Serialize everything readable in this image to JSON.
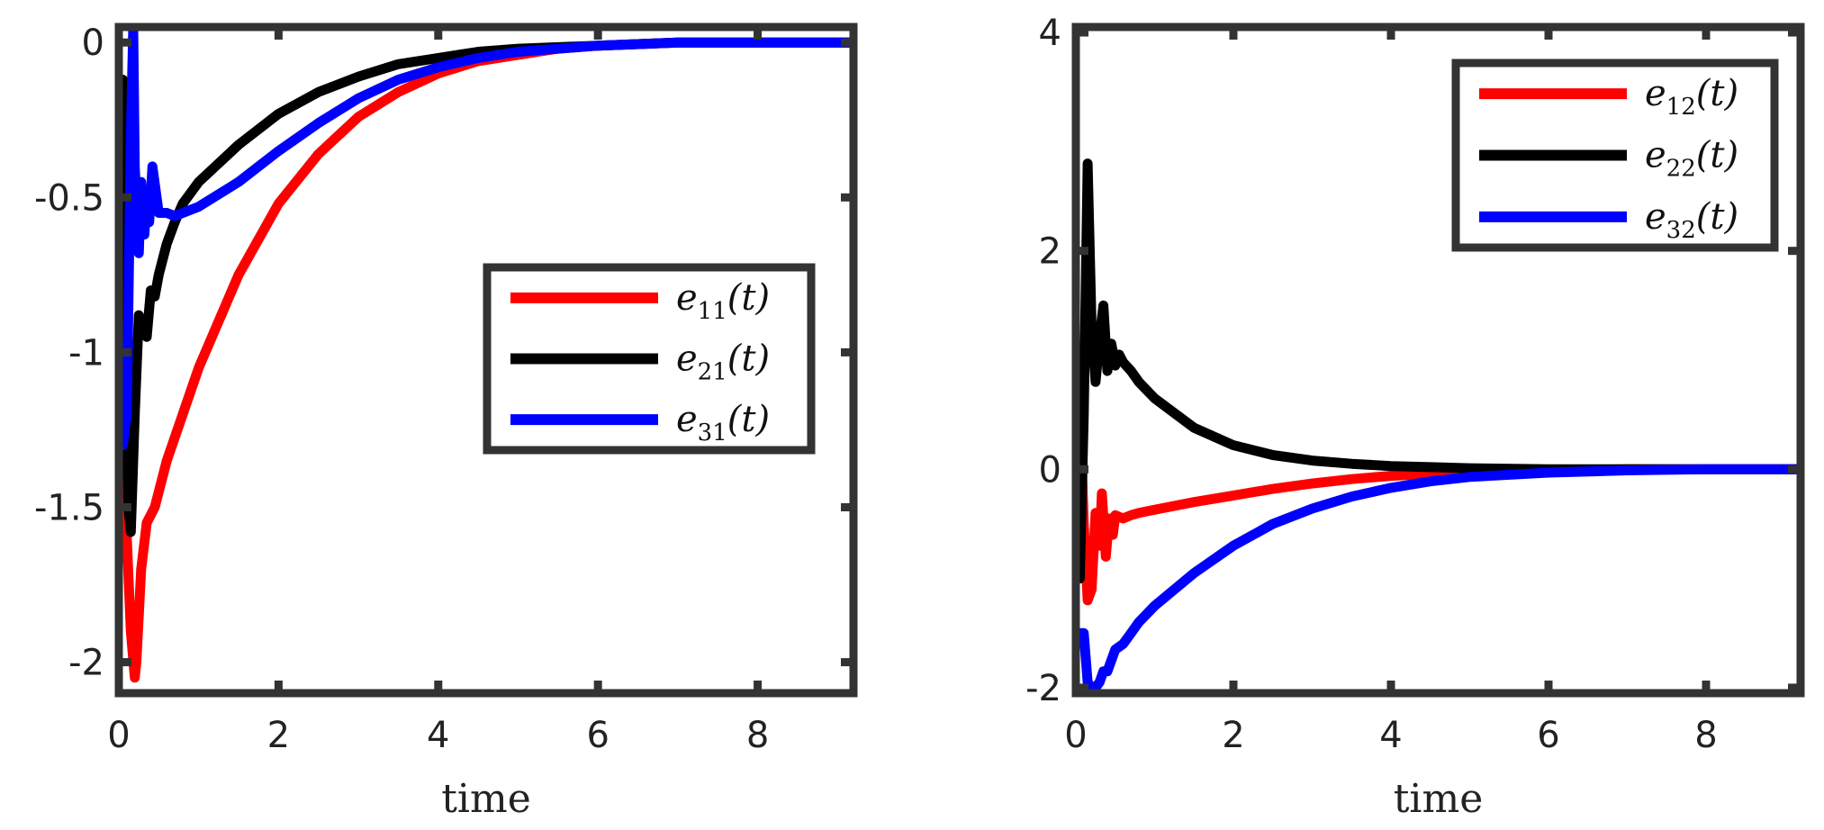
{
  "chart_data": [
    {
      "type": "line",
      "title": "",
      "xlabel": "time",
      "ylabel": "",
      "xlim": [
        0,
        9.2
      ],
      "ylim": [
        -2.1,
        0.05
      ],
      "xticks": [
        0,
        2,
        4,
        6,
        8
      ],
      "yticks": [
        -2,
        -1.5,
        -1,
        -0.5,
        0
      ],
      "ytick_labels": [
        "-2",
        "-1.5",
        "-1",
        "-0.5",
        "0"
      ],
      "grid": false,
      "legend_position": "right-middle",
      "colors": [
        "#ff0000",
        "#000000",
        "#0000ff"
      ],
      "series": [
        {
          "name": "e11(t)",
          "color": "#ff0000",
          "x": [
            0.05,
            0.1,
            0.15,
            0.2,
            0.22,
            0.28,
            0.35,
            0.45,
            0.6,
            0.8,
            1.0,
            1.5,
            2.0,
            2.5,
            3.0,
            3.5,
            4.0,
            4.5,
            5.0,
            5.5,
            6.0,
            7.0,
            8.0,
            9.2
          ],
          "y": [
            -1.0,
            -1.6,
            -1.9,
            -2.05,
            -2.0,
            -1.7,
            -1.55,
            -1.5,
            -1.35,
            -1.2,
            -1.05,
            -0.75,
            -0.52,
            -0.36,
            -0.24,
            -0.16,
            -0.1,
            -0.06,
            -0.04,
            -0.02,
            -0.01,
            0.0,
            0.0,
            0.0
          ]
        },
        {
          "name": "e21(t)",
          "color": "#000000",
          "x": [
            0.05,
            0.08,
            0.1,
            0.12,
            0.15,
            0.2,
            0.25,
            0.3,
            0.35,
            0.4,
            0.45,
            0.5,
            0.6,
            0.7,
            0.8,
            1.0,
            1.5,
            2.0,
            2.5,
            3.0,
            3.5,
            4.0,
            4.5,
            5.0,
            6.0,
            7.0,
            8.0,
            9.2
          ],
          "y": [
            -0.12,
            -0.5,
            -1.2,
            -1.5,
            -1.58,
            -1.2,
            -0.88,
            -0.93,
            -0.95,
            -0.8,
            -0.82,
            -0.75,
            -0.65,
            -0.58,
            -0.52,
            -0.45,
            -0.33,
            -0.23,
            -0.16,
            -0.11,
            -0.07,
            -0.05,
            -0.03,
            -0.02,
            -0.01,
            0.0,
            0.0,
            0.0
          ]
        },
        {
          "name": "e31(t)",
          "color": "#0000ff",
          "x": [
            0.05,
            0.1,
            0.15,
            0.18,
            0.2,
            0.25,
            0.28,
            0.32,
            0.35,
            0.38,
            0.42,
            0.5,
            0.6,
            0.7,
            0.8,
            1.0,
            1.5,
            2.0,
            2.5,
            3.0,
            3.5,
            4.0,
            4.5,
            5.0,
            6.0,
            7.0,
            8.0,
            9.2
          ],
          "y": [
            -1.3,
            -1.2,
            -0.3,
            0.05,
            -0.4,
            -0.68,
            -0.45,
            -0.62,
            -0.5,
            -0.58,
            -0.4,
            -0.55,
            -0.55,
            -0.56,
            -0.55,
            -0.53,
            -0.45,
            -0.35,
            -0.26,
            -0.18,
            -0.12,
            -0.08,
            -0.05,
            -0.03,
            -0.01,
            0.0,
            0.0,
            0.0
          ]
        }
      ]
    },
    {
      "type": "line",
      "title": "",
      "xlabel": "time",
      "ylabel": "",
      "xlim": [
        0,
        9.2
      ],
      "ylim": [
        -2.05,
        4.05
      ],
      "xticks": [
        0,
        2,
        4,
        6,
        8
      ],
      "yticks": [
        -2,
        0,
        2,
        4
      ],
      "ytick_labels": [
        "-2",
        "0",
        "2",
        "4"
      ],
      "grid": false,
      "legend_position": "top-right",
      "colors": [
        "#ff0000",
        "#000000",
        "#0000ff"
      ],
      "series": [
        {
          "name": "e12(t)",
          "color": "#ff0000",
          "x": [
            0.05,
            0.1,
            0.15,
            0.2,
            0.25,
            0.3,
            0.33,
            0.38,
            0.42,
            0.47,
            0.5,
            0.6,
            0.7,
            0.8,
            1.0,
            1.5,
            2.0,
            2.5,
            3.0,
            3.5,
            4.0,
            4.5,
            5.0,
            6.0,
            7.0,
            8.0,
            9.2
          ],
          "y": [
            0.6,
            -0.5,
            -1.2,
            -1.1,
            -0.4,
            -0.7,
            -0.22,
            -0.8,
            -0.45,
            -0.6,
            -0.42,
            -0.45,
            -0.42,
            -0.4,
            -0.37,
            -0.3,
            -0.24,
            -0.18,
            -0.13,
            -0.09,
            -0.06,
            -0.04,
            -0.02,
            -0.01,
            0.0,
            0.0,
            0.0
          ]
        },
        {
          "name": "e22(t)",
          "color": "#000000",
          "x": [
            0.05,
            0.1,
            0.15,
            0.2,
            0.25,
            0.3,
            0.35,
            0.4,
            0.45,
            0.5,
            0.55,
            0.6,
            0.7,
            0.8,
            1.0,
            1.5,
            2.0,
            2.5,
            3.0,
            3.5,
            4.0,
            4.5,
            5.0,
            6.0,
            7.0,
            8.0,
            9.2
          ],
          "y": [
            -1.0,
            0.5,
            2.8,
            1.3,
            0.8,
            1.2,
            1.5,
            0.9,
            1.15,
            0.95,
            1.05,
            0.98,
            0.9,
            0.8,
            0.65,
            0.38,
            0.22,
            0.13,
            0.08,
            0.05,
            0.03,
            0.02,
            0.01,
            0.0,
            0.0,
            0.0,
            0.0
          ]
        },
        {
          "name": "e32(t)",
          "color": "#0000ff",
          "x": [
            0.05,
            0.1,
            0.15,
            0.2,
            0.25,
            0.3,
            0.35,
            0.4,
            0.5,
            0.6,
            0.7,
            0.8,
            1.0,
            1.5,
            2.0,
            2.5,
            3.0,
            3.5,
            4.0,
            4.5,
            5.0,
            6.0,
            7.0,
            8.0,
            9.2
          ],
          "y": [
            -1.5,
            -1.5,
            -1.95,
            -2.0,
            -2.0,
            -1.95,
            -1.85,
            -1.85,
            -1.65,
            -1.6,
            -1.5,
            -1.4,
            -1.25,
            -0.95,
            -0.7,
            -0.5,
            -0.36,
            -0.25,
            -0.17,
            -0.11,
            -0.07,
            -0.03,
            -0.01,
            0.0,
            0.0
          ]
        }
      ]
    }
  ]
}
